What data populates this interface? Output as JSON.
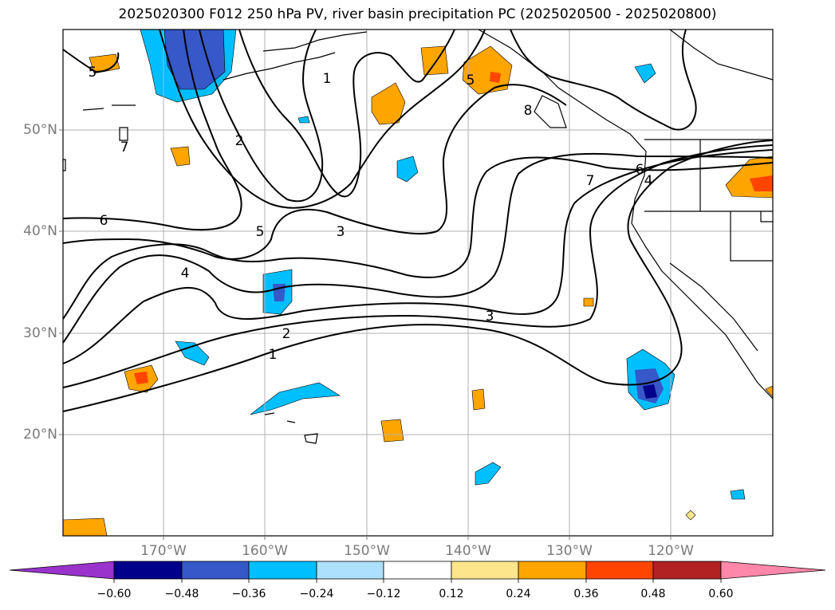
{
  "title": "2025020300 F012 250 hPa PV, river basin precipitation PC (2025020500 - 2025020800)",
  "lon_labels": [
    "170°W",
    "160°W",
    "150°W",
    "140°W",
    "130°W",
    "120°W"
  ],
  "lat_labels": [
    "50°N",
    "40°N",
    "30°N",
    "20°N"
  ],
  "contour_labels": [
    "1",
    "2",
    "3",
    "4",
    "5",
    "6",
    "7",
    "8"
  ],
  "colorbar": {
    "tick_labels": [
      "−0.60",
      "−0.48",
      "−0.36",
      "−0.24",
      "−0.12",
      "0.12",
      "0.24",
      "0.36",
      "0.48",
      "0.60"
    ],
    "colors": [
      "#9933cc",
      "#00008b",
      "#3658c8",
      "#00bfff",
      "#ade0fa",
      "#ffffff",
      "#fde68a",
      "#ffa500",
      "#ff4500",
      "#b22222",
      "#ff88aa"
    ]
  },
  "colors": {
    "pv_contour": "#000000",
    "coastline": "#000000",
    "gridline": "#b0b0b0",
    "axis_label": "#7a7a7a"
  }
}
